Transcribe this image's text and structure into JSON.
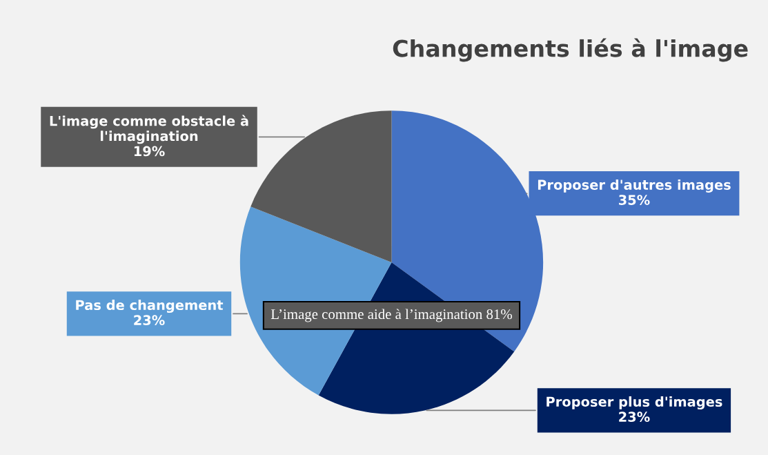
{
  "chart_data": {
    "type": "pie",
    "title": "Changements liés à l'image",
    "categories": [
      "Proposer d'autres images",
      "Proposer plus d'images",
      "Pas de changement",
      "L'image comme obstacle à l'imagination"
    ],
    "values": [
      35,
      23,
      23,
      19
    ],
    "colors": [
      "#4472c4",
      "#002060",
      "#5b9bd5",
      "#595959"
    ],
    "value_labels": [
      "35%",
      "23%",
      "23%",
      "19%"
    ],
    "annotations": [
      "L’image comme aide à l’imagination 81%"
    ]
  }
}
